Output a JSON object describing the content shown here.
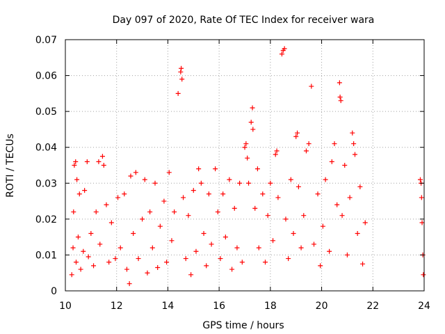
{
  "chart_data": {
    "type": "scatter",
    "title": "Day 097 of 2020, Rate Of TEC Index for receiver wara",
    "xlabel": "GPS time / hours",
    "ylabel": "ROTI / TECUs",
    "xlim": [
      10,
      24
    ],
    "ylim": [
      0,
      0.07
    ],
    "x_ticks": [
      10,
      12,
      14,
      16,
      18,
      20,
      22,
      24
    ],
    "x_tick_labels": [
      "10",
      "12",
      "14",
      "16",
      "18",
      "20",
      "22",
      "24"
    ],
    "y_ticks": [
      0,
      0.01,
      0.02,
      0.03,
      0.04,
      0.05,
      0.06,
      0.07
    ],
    "y_tick_labels": [
      "0",
      "0.01",
      "0.02",
      "0.03",
      "0.04",
      "0.05",
      "0.06",
      "0.07"
    ],
    "grid": true,
    "marker": "+",
    "color": "#ff0000",
    "series": [
      {
        "name": "ROTI",
        "points": [
          [
            10.25,
            0.0045
          ],
          [
            10.3,
            0.012
          ],
          [
            10.32,
            0.022
          ],
          [
            10.35,
            0.035
          ],
          [
            10.4,
            0.036
          ],
          [
            10.42,
            0.008
          ],
          [
            10.45,
            0.031
          ],
          [
            10.5,
            0.015
          ],
          [
            10.55,
            0.027
          ],
          [
            10.6,
            0.006
          ],
          [
            10.7,
            0.011
          ],
          [
            10.75,
            0.028
          ],
          [
            10.85,
            0.036
          ],
          [
            10.9,
            0.0095
          ],
          [
            11.0,
            0.016
          ],
          [
            11.1,
            0.007
          ],
          [
            11.2,
            0.022
          ],
          [
            11.3,
            0.036
          ],
          [
            11.35,
            0.013
          ],
          [
            11.45,
            0.0375
          ],
          [
            11.5,
            0.035
          ],
          [
            11.6,
            0.024
          ],
          [
            11.7,
            0.008
          ],
          [
            11.8,
            0.019
          ],
          [
            11.95,
            0.009
          ],
          [
            12.05,
            0.026
          ],
          [
            12.15,
            0.012
          ],
          [
            12.3,
            0.027
          ],
          [
            12.4,
            0.006
          ],
          [
            12.5,
            0.002
          ],
          [
            12.55,
            0.032
          ],
          [
            12.65,
            0.016
          ],
          [
            12.75,
            0.033
          ],
          [
            12.85,
            0.009
          ],
          [
            13.0,
            0.02
          ],
          [
            13.1,
            0.031
          ],
          [
            13.2,
            0.005
          ],
          [
            13.3,
            0.022
          ],
          [
            13.4,
            0.012
          ],
          [
            13.5,
            0.03
          ],
          [
            13.6,
            0.0065
          ],
          [
            13.7,
            0.018
          ],
          [
            13.85,
            0.025
          ],
          [
            13.95,
            0.008
          ],
          [
            14.05,
            0.033
          ],
          [
            14.15,
            0.014
          ],
          [
            14.25,
            0.022
          ],
          [
            14.4,
            0.055
          ],
          [
            14.5,
            0.061
          ],
          [
            14.52,
            0.062
          ],
          [
            14.55,
            0.059
          ],
          [
            14.6,
            0.026
          ],
          [
            14.7,
            0.009
          ],
          [
            14.8,
            0.021
          ],
          [
            14.9,
            0.0045
          ],
          [
            15.0,
            0.028
          ],
          [
            15.1,
            0.011
          ],
          [
            15.2,
            0.034
          ],
          [
            15.3,
            0.03
          ],
          [
            15.4,
            0.016
          ],
          [
            15.5,
            0.007
          ],
          [
            15.6,
            0.027
          ],
          [
            15.7,
            0.013
          ],
          [
            15.85,
            0.034
          ],
          [
            15.95,
            0.022
          ],
          [
            16.05,
            0.009
          ],
          [
            16.15,
            0.027
          ],
          [
            16.25,
            0.015
          ],
          [
            16.4,
            0.031
          ],
          [
            16.5,
            0.006
          ],
          [
            16.6,
            0.023
          ],
          [
            16.7,
            0.012
          ],
          [
            16.8,
            0.03
          ],
          [
            16.9,
            0.008
          ],
          [
            17.0,
            0.04
          ],
          [
            17.05,
            0.041
          ],
          [
            17.1,
            0.037
          ],
          [
            17.15,
            0.03
          ],
          [
            17.25,
            0.047
          ],
          [
            17.3,
            0.051
          ],
          [
            17.32,
            0.045
          ],
          [
            17.4,
            0.023
          ],
          [
            17.5,
            0.034
          ],
          [
            17.55,
            0.012
          ],
          [
            17.7,
            0.027
          ],
          [
            17.8,
            0.008
          ],
          [
            17.9,
            0.021
          ],
          [
            18.0,
            0.03
          ],
          [
            18.1,
            0.014
          ],
          [
            18.2,
            0.038
          ],
          [
            18.25,
            0.039
          ],
          [
            18.3,
            0.026
          ],
          [
            18.45,
            0.066
          ],
          [
            18.5,
            0.067
          ],
          [
            18.55,
            0.0675
          ],
          [
            18.6,
            0.02
          ],
          [
            18.7,
            0.009
          ],
          [
            18.8,
            0.031
          ],
          [
            18.9,
            0.016
          ],
          [
            19.0,
            0.043
          ],
          [
            19.05,
            0.044
          ],
          [
            19.1,
            0.029
          ],
          [
            19.2,
            0.012
          ],
          [
            19.3,
            0.021
          ],
          [
            19.4,
            0.039
          ],
          [
            19.5,
            0.041
          ],
          [
            19.6,
            0.057
          ],
          [
            19.7,
            0.013
          ],
          [
            19.85,
            0.027
          ],
          [
            19.95,
            0.007
          ],
          [
            20.05,
            0.018
          ],
          [
            20.15,
            0.031
          ],
          [
            20.3,
            0.011
          ],
          [
            20.4,
            0.036
          ],
          [
            20.5,
            0.041
          ],
          [
            20.6,
            0.024
          ],
          [
            20.7,
            0.058
          ],
          [
            20.72,
            0.054
          ],
          [
            20.75,
            0.053
          ],
          [
            20.8,
            0.021
          ],
          [
            20.9,
            0.035
          ],
          [
            21.0,
            0.01
          ],
          [
            21.1,
            0.026
          ],
          [
            21.2,
            0.044
          ],
          [
            21.25,
            0.041
          ],
          [
            21.3,
            0.038
          ],
          [
            21.4,
            0.016
          ],
          [
            21.5,
            0.029
          ],
          [
            21.6,
            0.0075
          ],
          [
            21.7,
            0.019
          ],
          [
            23.85,
            0.031
          ],
          [
            23.88,
            0.03
          ],
          [
            23.9,
            0.026
          ],
          [
            23.92,
            0.019
          ],
          [
            23.95,
            0.01
          ],
          [
            23.97,
            0.0045
          ]
        ]
      }
    ]
  }
}
